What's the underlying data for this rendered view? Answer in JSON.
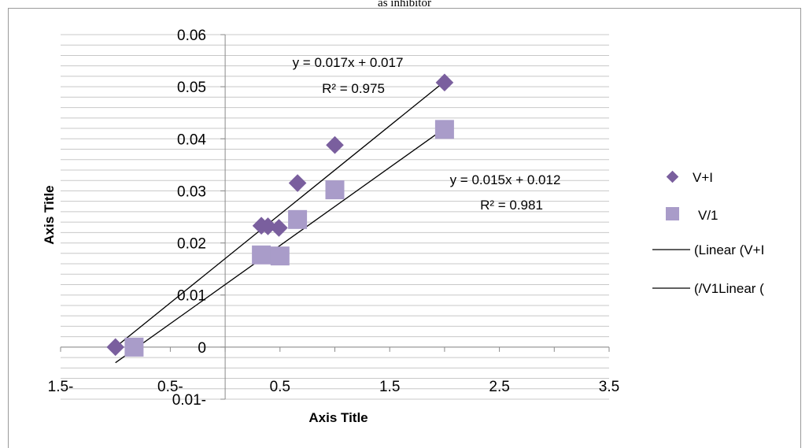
{
  "header": {
    "title_fragment": "as inhibitor"
  },
  "chart_data": {
    "type": "scatter",
    "xlabel": "Axis Title",
    "ylabel": "Axis Title",
    "xlim": [
      -1.5,
      3.5
    ],
    "ylim": [
      -0.01,
      0.06
    ],
    "x_ticks": [
      {
        "value": -1.5,
        "label": "1.5-"
      },
      {
        "value": -0.5,
        "label": "0.5-"
      },
      {
        "value": 0.5,
        "label": "0.5"
      },
      {
        "value": 1.5,
        "label": "1.5"
      },
      {
        "value": 2.5,
        "label": "2.5"
      },
      {
        "value": 3.5,
        "label": "3.5"
      }
    ],
    "y_ticks": [
      {
        "value": -0.01,
        "label": "0.01-"
      },
      {
        "value": 0,
        "label": "0"
      },
      {
        "value": 0.01,
        "label": "0.01"
      },
      {
        "value": 0.02,
        "label": "0.02"
      },
      {
        "value": 0.03,
        "label": "0.03"
      },
      {
        "value": 0.04,
        "label": "0.04"
      },
      {
        "value": 0.05,
        "label": "0.05"
      },
      {
        "value": 0.06,
        "label": "0.06"
      }
    ],
    "grid": true,
    "legend_position": "right",
    "series": [
      {
        "name": "V+I",
        "marker": "diamond",
        "color": "#7a5f9e",
        "points": [
          {
            "x": -1.0,
            "y": 0.0
          },
          {
            "x": 0.33,
            "y": 0.0233
          },
          {
            "x": 0.39,
            "y": 0.0232
          },
          {
            "x": 0.49,
            "y": 0.0229
          },
          {
            "x": 0.66,
            "y": 0.0315
          },
          {
            "x": 1.0,
            "y": 0.0388
          },
          {
            "x": 2.0,
            "y": 0.0508
          }
        ]
      },
      {
        "name": "V/1",
        "marker": "square",
        "color": "#a99cc9",
        "points": [
          {
            "x": -0.83,
            "y": 0.0
          },
          {
            "x": 0.33,
            "y": 0.0177
          },
          {
            "x": 0.5,
            "y": 0.0175
          },
          {
            "x": 0.66,
            "y": 0.0245
          },
          {
            "x": 1.0,
            "y": 0.0302
          },
          {
            "x": 2.0,
            "y": 0.0418
          }
        ]
      }
    ],
    "trendlines": [
      {
        "name": "(Linear (V+I",
        "slope": 0.017,
        "intercept": 0.017,
        "x_range": [
          -1.0,
          2.0
        ],
        "equation": "y = 0.017x + 0.017",
        "r2": "R² = 0.975",
        "color": "#000000"
      },
      {
        "name": "(/V1Linear (",
        "slope": 0.015,
        "intercept": 0.012,
        "x_range": [
          -1.0,
          2.0
        ],
        "equation": "y = 0.015x + 0.012",
        "r2": "R² = 0.981",
        "color": "#000000"
      }
    ]
  }
}
